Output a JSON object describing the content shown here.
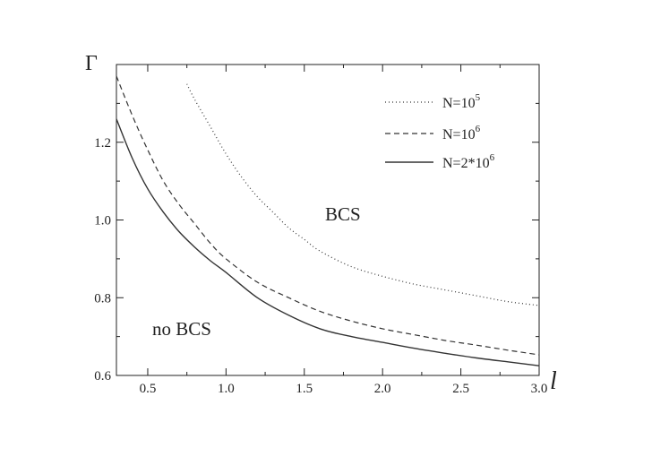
{
  "chart_data": {
    "type": "line",
    "ylabel": "Γ",
    "xlabel": "l",
    "xlim": [
      0.3,
      3.0
    ],
    "ylim": [
      0.6,
      1.4
    ],
    "xticks": [
      "0.5",
      "1.0",
      "1.5",
      "2.0",
      "2.5",
      "3.0"
    ],
    "yticks": [
      "0.6",
      "0.8",
      "1.0",
      "1.2"
    ],
    "grid": false,
    "legend_position": "top-right",
    "annotations": [
      "BCS",
      "no BCS"
    ],
    "series": [
      {
        "name_base": "N=10",
        "name_exp": "5",
        "style": "dotted",
        "x": [
          0.75,
          0.8,
          0.9,
          1.0,
          1.1,
          1.2,
          1.3,
          1.4,
          1.5,
          1.6,
          1.8,
          2.0,
          2.2,
          2.4,
          2.6,
          2.8,
          3.0
        ],
        "y": [
          1.35,
          1.31,
          1.24,
          1.17,
          1.11,
          1.06,
          1.02,
          0.98,
          0.95,
          0.92,
          0.88,
          0.855,
          0.835,
          0.82,
          0.805,
          0.79,
          0.78
        ]
      },
      {
        "name_base": "N=10",
        "name_exp": "6",
        "style": "dashed",
        "x": [
          0.3,
          0.4,
          0.5,
          0.6,
          0.7,
          0.8,
          0.9,
          1.0,
          1.2,
          1.4,
          1.6,
          1.8,
          2.0,
          2.2,
          2.4,
          2.6,
          2.8,
          3.0
        ],
        "y": [
          1.37,
          1.27,
          1.18,
          1.1,
          1.04,
          0.99,
          0.94,
          0.9,
          0.84,
          0.8,
          0.765,
          0.74,
          0.72,
          0.705,
          0.69,
          0.678,
          0.665,
          0.653
        ]
      },
      {
        "name_base": "N=2*10",
        "name_exp": "6",
        "style": "solid",
        "x": [
          0.3,
          0.4,
          0.5,
          0.6,
          0.7,
          0.8,
          0.9,
          1.0,
          1.2,
          1.4,
          1.6,
          1.8,
          2.0,
          2.2,
          2.4,
          2.6,
          2.8,
          3.0
        ],
        "y": [
          1.26,
          1.16,
          1.08,
          1.02,
          0.97,
          0.93,
          0.895,
          0.865,
          0.8,
          0.755,
          0.72,
          0.7,
          0.685,
          0.67,
          0.657,
          0.645,
          0.635,
          0.625
        ]
      }
    ]
  }
}
